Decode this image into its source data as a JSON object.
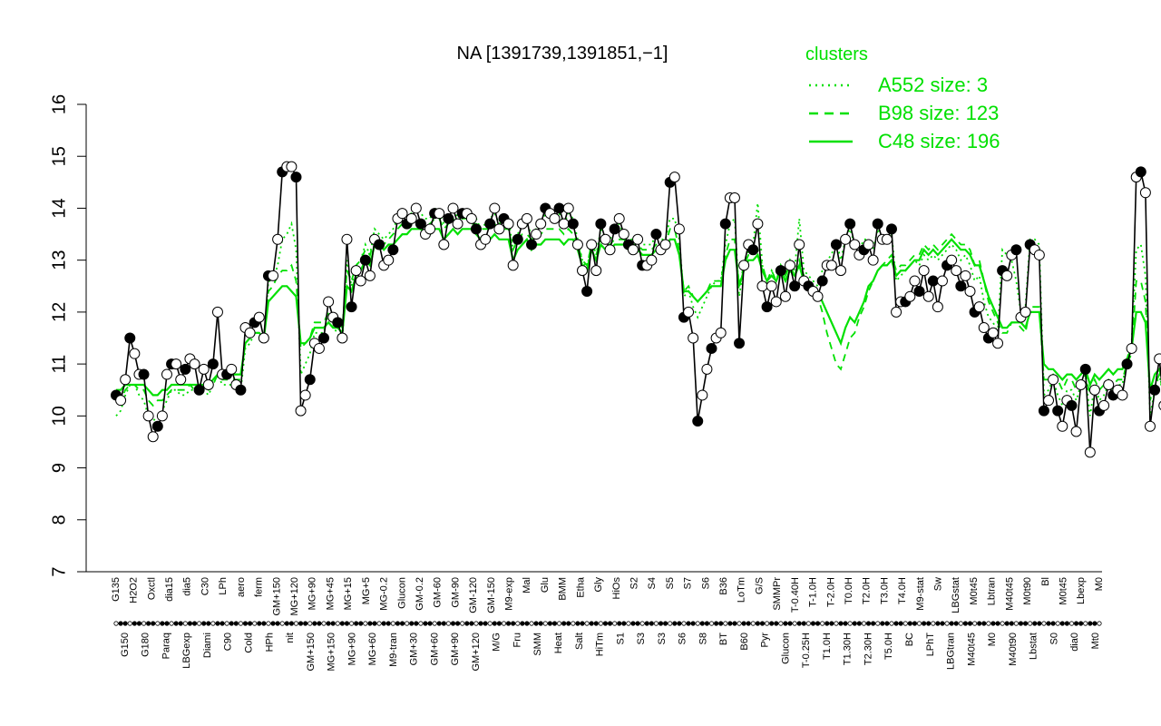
{
  "chart_data": {
    "type": "line",
    "title": "NA [1391739,1391851,−1]",
    "xlabel": "",
    "ylabel": "",
    "ylim": [
      7,
      16
    ],
    "y_ticks": [
      7,
      8,
      9,
      10,
      11,
      12,
      13,
      14,
      15,
      16
    ],
    "n_samples": 214,
    "x_labels_top": [
      "G135",
      "H2O2",
      "Oxctl",
      "dia15",
      "dia5",
      "C30",
      "LPh",
      "aero",
      "ferm",
      "GM+150",
      "MG+120",
      "MG+90",
      "MG+45",
      "MG+15",
      "MG+5",
      "MG-0.2",
      "Glucon",
      "GM-0.2",
      "GM-60",
      "GM-90",
      "GM-120",
      "GM-150",
      "M9-exp",
      "Mal",
      "Glu",
      "BMM",
      "Etha",
      "Gly",
      "HiOs",
      "S2",
      "S4",
      "S5",
      "S7",
      "S6",
      "B36",
      "LoTm",
      "G/S",
      "SMMPr",
      "T-0.40H",
      "T-1.0H",
      "T-2.0H",
      "T0.0H",
      "T2.0H",
      "T3.0H",
      "T4.0H",
      "M9-stat",
      "Sw",
      "LBGstat",
      "M0t45",
      "Lbtran",
      "M40t45",
      "M0t90",
      "Bl",
      "M0t45",
      "Lbexp",
      "M0"
    ],
    "x_labels_bottom": [
      "G150",
      "G180",
      "Paraq",
      "LBGexp",
      "Diami",
      "C90",
      "Cold",
      "HPh",
      "nit",
      "GM+150",
      "MG+150",
      "MG+90",
      "MG+60",
      "M9-tran",
      "GM+30",
      "GM+60",
      "GM+90",
      "GM+120",
      "M/G",
      "Fru",
      "SMM",
      "Heat",
      "Salt",
      "HiTm",
      "S1",
      "S3",
      "S3",
      "S6",
      "S8",
      "BT",
      "B60",
      "Pyr",
      "Glucon",
      "T-0.25H",
      "T1.0H",
      "T1.30H",
      "T2.30H",
      "T5.0H",
      "BC",
      "LPhT",
      "LBGtran",
      "M40t45",
      "M0",
      "M40t90",
      "Lbstat",
      "S0",
      "dia0",
      "Mt0"
    ],
    "clusters_legend": {
      "title": "clusters",
      "entries": [
        {
          "label": "A552 size: 3",
          "style": "dotted"
        },
        {
          "label": "B98 size: 123",
          "style": "dashed"
        },
        {
          "label": "C48 size: 196",
          "style": "solid"
        }
      ]
    },
    "series": [
      {
        "name": "",
        "style": "black line with points",
        "values": [
          10.4,
          10.3,
          10.7,
          11.5,
          11.2,
          10.8,
          10.8,
          10.0,
          9.6,
          9.8,
          10.0,
          10.8,
          11.0,
          11.0,
          10.7,
          10.9,
          11.1,
          11.0,
          10.5,
          10.9,
          10.6,
          11.0,
          12.0,
          10.8,
          10.8,
          10.9,
          10.6,
          10.5,
          11.7,
          11.6,
          11.8,
          11.9,
          11.5,
          12.7,
          12.7,
          13.4,
          14.7,
          14.8,
          14.8,
          14.6,
          10.1,
          10.4,
          10.7,
          11.4,
          11.3,
          11.5,
          12.2,
          11.9,
          11.8,
          11.5,
          13.4,
          12.1,
          12.8,
          12.6,
          13.0,
          12.7,
          13.4,
          13.3,
          12.9,
          13.0,
          13.2,
          13.8,
          13.9,
          13.7,
          13.8,
          14.0,
          13.7,
          13.5,
          13.6,
          13.9,
          13.9,
          13.3,
          13.8,
          14.0,
          13.7,
          13.9,
          13.9,
          13.8,
          13.6,
          13.3,
          13.4,
          13.7,
          14.0,
          13.6,
          13.8,
          13.7,
          12.9,
          13.4,
          13.7,
          13.8,
          13.3,
          13.5,
          13.7,
          14.0,
          13.9,
          13.8,
          14.0,
          13.7,
          14.0,
          13.7,
          13.3,
          12.8,
          12.4,
          13.3,
          12.8,
          13.7,
          13.4,
          13.2,
          13.6,
          13.8,
          13.5,
          13.3,
          13.2,
          13.4,
          12.9,
          12.9,
          13.0,
          13.5,
          13.2,
          13.3,
          14.5,
          14.6,
          13.6,
          11.9,
          12.0,
          11.5,
          9.9,
          10.4,
          10.9,
          11.3,
          11.5,
          11.6,
          13.7,
          14.2,
          14.2,
          11.4,
          12.9,
          13.3,
          13.2,
          13.7,
          12.5,
          12.1,
          12.5,
          12.2,
          12.8,
          12.3,
          12.9,
          12.5,
          13.3,
          12.6,
          12.5,
          12.4,
          12.3,
          12.6,
          12.9,
          12.9,
          13.3,
          12.8,
          13.4,
          13.7,
          13.3,
          13.1,
          13.2,
          13.3,
          13.0,
          13.7,
          13.4,
          13.4,
          13.6,
          12.0,
          12.2,
          12.2,
          12.3,
          12.6,
          12.4,
          12.8,
          12.3,
          12.6,
          12.1,
          12.6,
          12.9,
          13.0,
          12.8,
          12.5,
          12.7,
          12.4,
          12.0,
          12.1,
          11.7,
          11.5,
          11.6,
          11.4,
          12.8,
          12.7,
          13.1,
          13.2,
          11.9,
          12.0,
          13.3,
          13.2,
          13.1,
          10.1,
          10.3,
          10.7,
          10.1,
          9.8,
          10.3,
          10.2,
          9.7,
          10.6,
          10.9,
          9.3,
          10.5,
          10.1,
          10.2,
          10.6,
          10.4,
          10.5,
          10.4,
          11.0,
          11.3,
          14.6,
          14.7,
          14.3,
          9.8,
          10.5,
          11.1,
          10.2,
          10.3,
          10.4,
          10.0
        ]
      },
      {
        "name": "C48 size: 196",
        "style": "green solid",
        "values": [
          10.5,
          10.5,
          10.6,
          10.6,
          10.6,
          10.6,
          10.6,
          10.5,
          10.4,
          10.4,
          10.5,
          10.5,
          10.6,
          10.6,
          10.6,
          10.6,
          10.6,
          10.6,
          10.6,
          10.6,
          10.6,
          10.7,
          10.8,
          10.8,
          10.8,
          10.8,
          10.8,
          10.8,
          11.4,
          11.5,
          11.6,
          11.6,
          11.5,
          12.2,
          12.3,
          12.4,
          12.5,
          12.5,
          12.4,
          12.3,
          11.4,
          11.4,
          11.5,
          11.7,
          11.7,
          11.7,
          11.8,
          11.7,
          11.7,
          11.6,
          12.5,
          12.4,
          12.7,
          12.8,
          13.0,
          12.9,
          13.3,
          13.3,
          13.2,
          13.3,
          13.3,
          13.4,
          13.5,
          13.5,
          13.6,
          13.6,
          13.6,
          13.5,
          13.5,
          13.6,
          13.6,
          13.4,
          13.5,
          13.6,
          13.5,
          13.6,
          13.6,
          13.6,
          13.5,
          13.4,
          13.4,
          13.4,
          13.5,
          13.4,
          13.4,
          13.4,
          13.0,
          13.2,
          13.3,
          13.4,
          13.2,
          13.3,
          13.3,
          13.4,
          13.4,
          13.4,
          13.4,
          13.3,
          13.4,
          13.4,
          13.2,
          12.9,
          12.8,
          13.2,
          13.0,
          13.3,
          13.2,
          13.2,
          13.3,
          13.3,
          13.3,
          13.2,
          13.2,
          13.2,
          13.1,
          13.1,
          13.1,
          13.2,
          13.2,
          13.2,
          13.4,
          13.4,
          13.1,
          12.4,
          12.4,
          12.3,
          12.2,
          12.3,
          12.4,
          12.5,
          12.5,
          12.5,
          13.0,
          13.2,
          13.2,
          12.5,
          12.8,
          13.0,
          13.0,
          13.1,
          12.8,
          12.6,
          12.7,
          12.6,
          12.8,
          12.6,
          12.8,
          12.7,
          12.9,
          12.6,
          12.6,
          12.5,
          12.4,
          12.2,
          12.0,
          11.8,
          11.6,
          11.4,
          11.7,
          11.9,
          11.8,
          12.0,
          12.2,
          12.5,
          12.6,
          12.8,
          12.9,
          12.9,
          13.0,
          12.7,
          12.8,
          12.8,
          12.9,
          13.0,
          13.0,
          13.2,
          13.1,
          13.2,
          13.1,
          13.2,
          13.3,
          13.4,
          13.3,
          13.2,
          13.2,
          13.1,
          12.9,
          12.9,
          12.6,
          12.3,
          12.1,
          11.9,
          11.7,
          11.7,
          11.8,
          11.8,
          11.8,
          11.7,
          12.0,
          12.0,
          12.0,
          11.0,
          10.9,
          10.9,
          10.8,
          10.7,
          10.8,
          10.8,
          10.7,
          10.8,
          10.9,
          10.6,
          10.8,
          10.7,
          10.8,
          10.9,
          10.8,
          10.9,
          10.9,
          11.1,
          11.3,
          12.0,
          12.0,
          11.8,
          10.5,
          10.8,
          10.9,
          10.6,
          10.6,
          10.6,
          10.5
        ]
      },
      {
        "name": "B98 size: 123",
        "style": "green dashed",
        "values": [
          10.3,
          10.3,
          10.5,
          10.6,
          10.6,
          10.5,
          10.5,
          10.3,
          10.2,
          10.3,
          10.3,
          10.4,
          10.5,
          10.5,
          10.5,
          10.5,
          10.6,
          10.5,
          10.5,
          10.6,
          10.5,
          10.6,
          10.8,
          10.7,
          10.7,
          10.7,
          10.7,
          10.7,
          11.4,
          11.5,
          11.6,
          11.6,
          11.5,
          12.4,
          12.5,
          12.7,
          12.8,
          12.8,
          12.9,
          12.6,
          11.3,
          11.4,
          11.5,
          11.8,
          11.8,
          11.8,
          12.0,
          11.8,
          11.8,
          11.7,
          12.8,
          12.6,
          12.9,
          13.0,
          13.2,
          13.1,
          13.4,
          13.4,
          13.3,
          13.4,
          13.5,
          13.6,
          13.7,
          13.7,
          13.7,
          13.8,
          13.7,
          13.7,
          13.7,
          13.8,
          13.8,
          13.6,
          13.7,
          13.8,
          13.7,
          13.8,
          13.8,
          13.7,
          13.7,
          13.6,
          13.6,
          13.6,
          13.7,
          13.6,
          13.6,
          13.6,
          13.2,
          13.4,
          13.5,
          13.5,
          13.4,
          13.5,
          13.5,
          13.6,
          13.6,
          13.6,
          13.6,
          13.5,
          13.6,
          13.5,
          13.3,
          13.0,
          12.9,
          13.3,
          13.1,
          13.4,
          13.3,
          13.3,
          13.4,
          13.4,
          13.4,
          13.3,
          13.3,
          13.3,
          13.2,
          13.2,
          13.2,
          13.3,
          13.3,
          13.3,
          13.6,
          13.6,
          13.2,
          12.4,
          12.5,
          12.3,
          12.2,
          12.3,
          12.4,
          12.6,
          12.6,
          12.6,
          13.1,
          13.4,
          13.4,
          12.5,
          12.9,
          13.1,
          13.1,
          13.2,
          12.9,
          12.6,
          12.8,
          12.6,
          12.9,
          12.7,
          12.9,
          12.7,
          13.0,
          12.7,
          12.6,
          12.5,
          12.3,
          12.0,
          11.6,
          11.3,
          11.0,
          10.9,
          11.2,
          11.5,
          11.6,
          11.9,
          12.1,
          12.4,
          12.6,
          12.8,
          12.9,
          13.0,
          13.1,
          12.8,
          12.9,
          12.9,
          13.0,
          13.1,
          13.1,
          13.3,
          13.2,
          13.3,
          13.2,
          13.3,
          13.4,
          13.5,
          13.4,
          13.3,
          13.3,
          13.2,
          12.9,
          13.0,
          12.6,
          12.2,
          12.0,
          11.8,
          11.6,
          11.6,
          11.8,
          11.8,
          11.7,
          11.6,
          12.1,
          12.1,
          12.1,
          10.7,
          10.7,
          10.8,
          10.7,
          10.5,
          10.7,
          10.7,
          10.5,
          10.7,
          10.8,
          10.4,
          10.7,
          10.5,
          10.6,
          10.7,
          10.6,
          10.7,
          10.7,
          11.0,
          11.2,
          12.6,
          12.6,
          12.2,
          10.3,
          10.6,
          10.8,
          10.4,
          10.5,
          10.5,
          10.4
        ]
      },
      {
        "name": "A552 size: 3",
        "style": "green dotted",
        "values": [
          10.0,
          10.1,
          10.4,
          10.6,
          10.6,
          10.4,
          10.3,
          10.0,
          9.9,
          10.0,
          10.1,
          10.3,
          10.5,
          10.5,
          10.4,
          10.4,
          10.5,
          10.5,
          10.4,
          10.5,
          10.4,
          10.6,
          10.8,
          10.6,
          10.6,
          10.6,
          10.5,
          10.5,
          11.3,
          11.4,
          11.6,
          11.6,
          11.4,
          12.6,
          12.6,
          12.9,
          13.4,
          13.5,
          13.7,
          13.2,
          10.8,
          11.0,
          11.2,
          11.6,
          11.6,
          11.6,
          12.0,
          11.7,
          11.6,
          11.4,
          13.0,
          12.5,
          12.9,
          13.0,
          13.3,
          13.1,
          13.6,
          13.5,
          13.4,
          13.5,
          13.6,
          13.8,
          13.9,
          13.9,
          13.9,
          14.0,
          13.9,
          13.8,
          13.8,
          14.0,
          13.9,
          13.7,
          13.8,
          14.0,
          13.8,
          13.9,
          13.9,
          13.8,
          13.8,
          13.6,
          13.7,
          13.8,
          13.9,
          13.7,
          13.8,
          13.8,
          13.2,
          13.5,
          13.7,
          13.7,
          13.5,
          13.6,
          13.7,
          13.9,
          13.8,
          13.8,
          13.9,
          13.7,
          13.9,
          13.8,
          13.4,
          13.0,
          12.8,
          13.4,
          13.1,
          13.6,
          13.4,
          13.4,
          13.6,
          13.7,
          13.5,
          13.4,
          13.4,
          13.5,
          13.3,
          13.3,
          13.3,
          13.5,
          13.4,
          13.4,
          13.8,
          13.8,
          13.4,
          12.3,
          12.4,
          12.1,
          11.9,
          12.1,
          12.3,
          12.5,
          12.6,
          12.6,
          13.3,
          13.7,
          13.8,
          12.3,
          12.9,
          13.2,
          13.3,
          14.1,
          12.9,
          12.6,
          12.8,
          12.6,
          12.9,
          12.7,
          13.0,
          12.8,
          13.8,
          12.8,
          12.7,
          12.6,
          12.5,
          12.8,
          13.0,
          13.1,
          13.4,
          13.0,
          13.4,
          13.6,
          13.3,
          13.2,
          13.4,
          13.4,
          13.2,
          13.6,
          13.4,
          13.4,
          13.5,
          12.6,
          12.7,
          12.8,
          12.9,
          13.0,
          12.9,
          13.1,
          13.0,
          13.1,
          13.0,
          13.1,
          13.2,
          13.3,
          13.2,
          13.0,
          13.1,
          12.9,
          12.6,
          12.7,
          12.2,
          11.9,
          11.8,
          11.6,
          13.2,
          13.1,
          13.0,
          12.6,
          12.0,
          12.1,
          13.4,
          13.4,
          13.3,
          10.4,
          10.5,
          10.7,
          10.4,
          10.2,
          10.5,
          10.5,
          10.3,
          10.6,
          10.8,
          10.0,
          10.6,
          10.3,
          10.4,
          10.6,
          10.5,
          10.6,
          10.6,
          11.1,
          11.4,
          13.2,
          13.3,
          12.7,
          10.0,
          10.5,
          10.8,
          10.3,
          10.4,
          10.5,
          10.3
        ]
      }
    ],
    "colors": {
      "data": "#000000",
      "clusters": "#00e000",
      "point_fill_open": "#ffffff",
      "point_fill_filled": "#000000"
    }
  }
}
